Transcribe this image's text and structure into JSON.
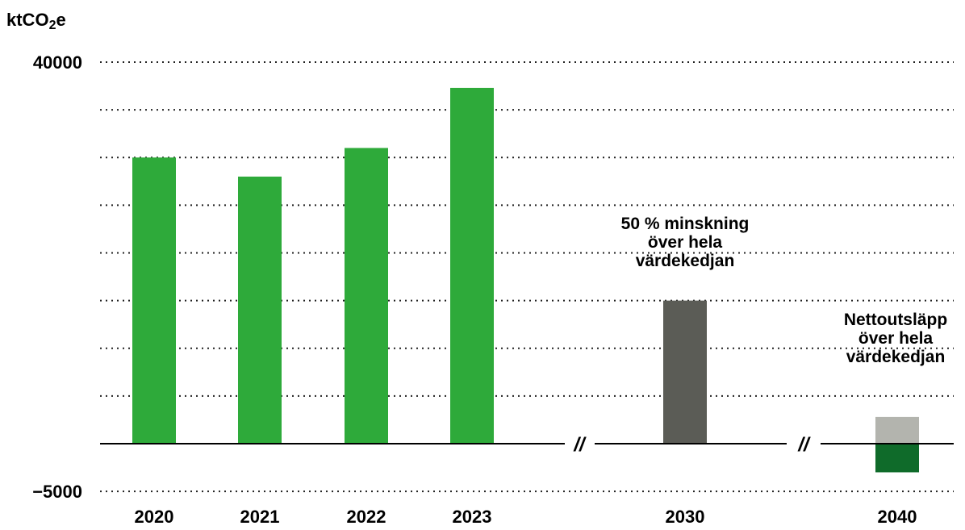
{
  "chart_data": {
    "type": "bar",
    "ylabel": "ktCO",
    "ylabel_sub": "2",
    "ylabel_suffix": "e",
    "ylim": [
      -5000,
      40000
    ],
    "y_ticks_labeled": [
      "40000",
      "−5000"
    ],
    "y_tick_values": [
      40000,
      -5000
    ],
    "grid_step": 5000,
    "grid": true,
    "categories": [
      "2020",
      "2021",
      "2022",
      "2023",
      "2030",
      "2040"
    ],
    "bars": [
      {
        "category": "2020",
        "value": 30000,
        "color": "#2eaa3a"
      },
      {
        "category": "2021",
        "value": 28000,
        "color": "#2eaa3a"
      },
      {
        "category": "2022",
        "value": 31000,
        "color": "#2eaa3a"
      },
      {
        "category": "2023",
        "value": 37300,
        "color": "#2eaa3a"
      },
      {
        "category": "2030",
        "value": 15000,
        "color": "#5b5c56"
      },
      {
        "category": "2040",
        "value": 2800,
        "color": "#b3b4ae"
      },
      {
        "category": "2040",
        "value": -3000,
        "color": "#0f6b2a"
      }
    ],
    "axis_breaks": [
      "//",
      "//"
    ],
    "annotations": [
      {
        "category": "2030",
        "lines": [
          "50 % minskning",
          "över hela",
          "värdekedjan"
        ]
      },
      {
        "category": "2040",
        "lines": [
          "Nettoutsläpp",
          "över hela",
          "värdekedjan"
        ]
      }
    ]
  }
}
